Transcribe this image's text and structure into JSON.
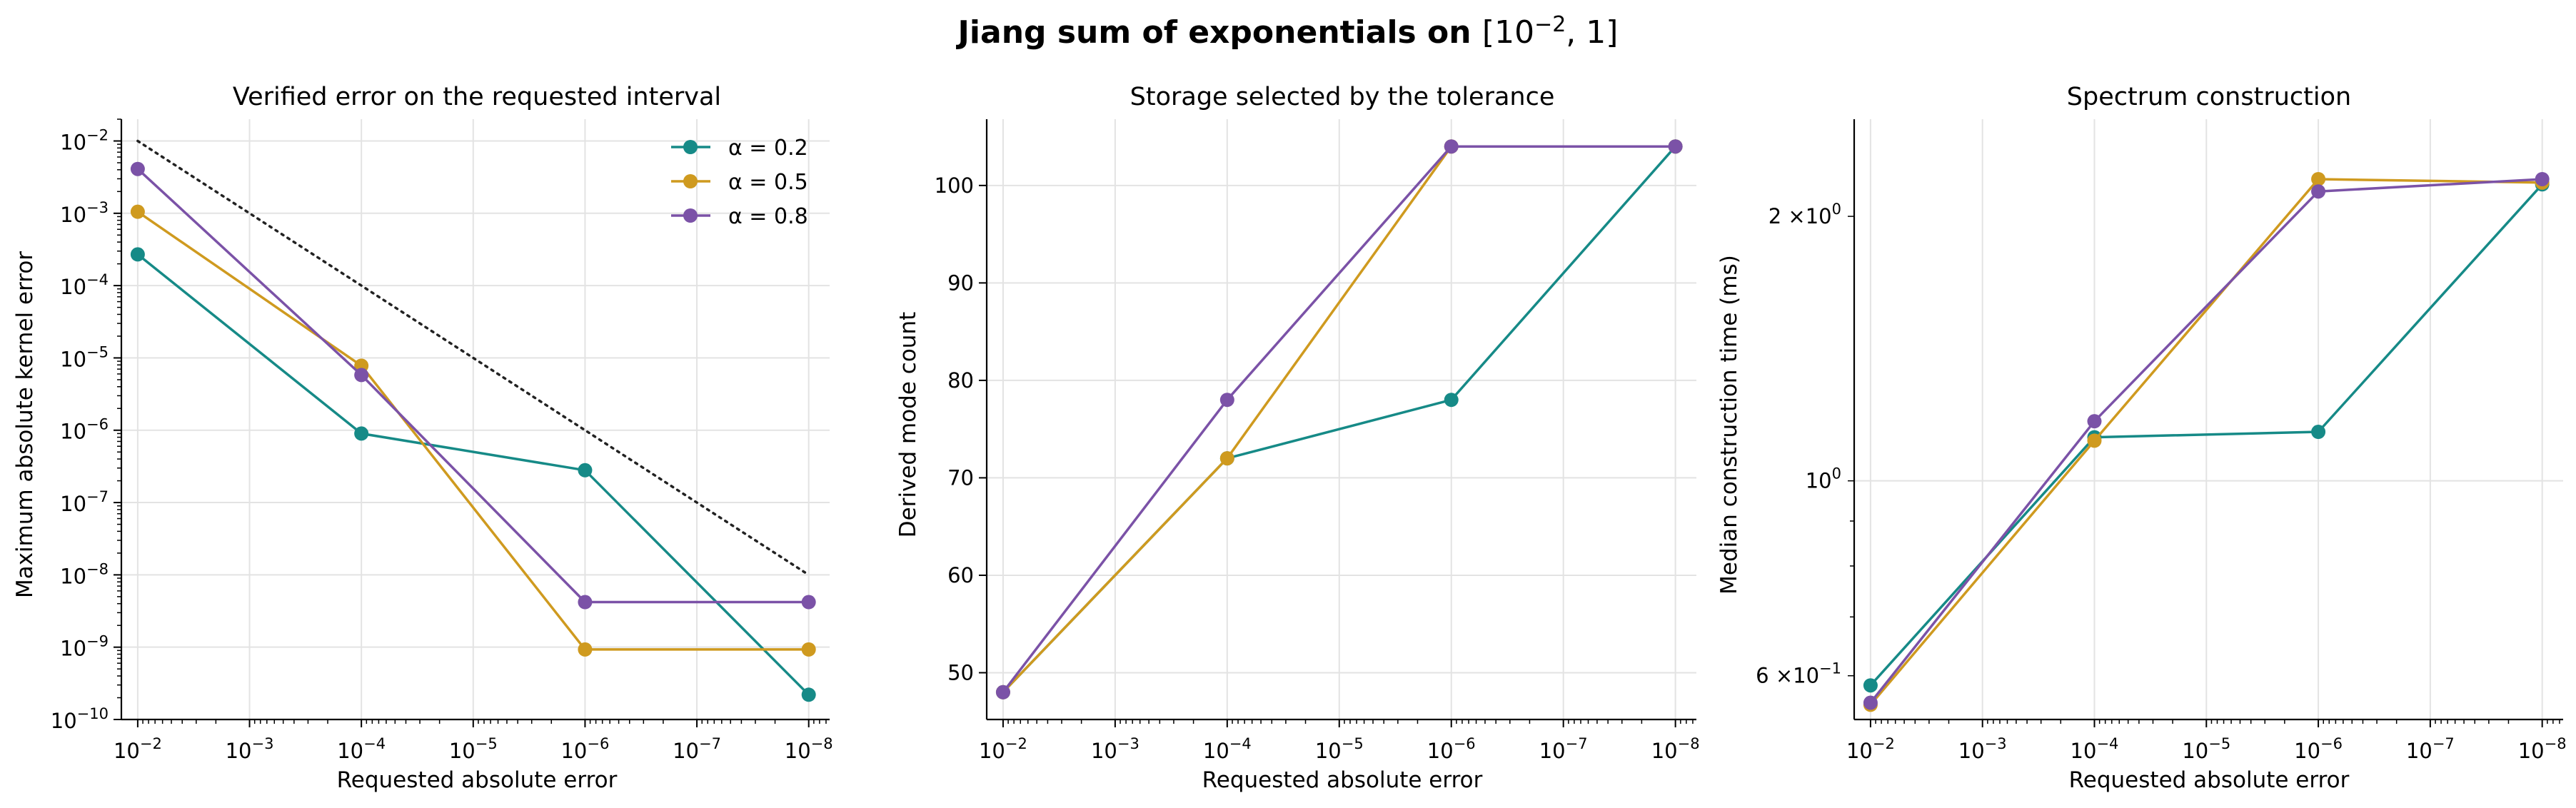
{
  "suptitle": {
    "text": "Jiang sum of exponentials on ",
    "interval": "[10",
    "interval_exp": "−2",
    "interval_end": ", 1]"
  },
  "colors": {
    "alpha_0_2": "#168a87",
    "alpha_0_5": "#cf9a1f",
    "alpha_0_8": "#7b52a7",
    "reference": "#222222",
    "grid": "#e3e3e3"
  },
  "legend": [
    {
      "name": "α = 0.2",
      "color": "#168a87"
    },
    {
      "name": "α = 0.5",
      "color": "#cf9a1f"
    },
    {
      "name": "α = 0.8",
      "color": "#7b52a7"
    }
  ],
  "chart_data": [
    {
      "type": "line",
      "title": "Verified error on the requested interval",
      "xlabel": "Requested absolute error",
      "ylabel": "Maximum absolute kernel error",
      "x": [
        0.01,
        0.0001,
        1e-06,
        1e-08
      ],
      "xscale": "log",
      "xaxis": "inverted",
      "xlim": [
        0.014,
        6.5e-09
      ],
      "yscale": "log",
      "ylim": [
        1e-10,
        0.02
      ],
      "x_ticks": [
        "10^-2",
        "10^-3",
        "10^-4",
        "10^-5",
        "10^-6",
        "10^-7",
        "10^-8"
      ],
      "y_ticks": [
        "10^-2",
        "10^-3",
        "10^-4",
        "10^-5",
        "10^-6",
        "10^-7",
        "10^-8",
        "10^-9",
        "10^-10"
      ],
      "grid": true,
      "legend_position": "top-right",
      "reference_line": {
        "style": "dotted",
        "x": [
          0.01,
          1e-08
        ],
        "y": [
          0.01,
          1e-08
        ]
      },
      "series": [
        {
          "name": "α = 0.2",
          "values": [
            0.00027,
            9e-07,
            2.8e-07,
            2.2e-10
          ]
        },
        {
          "name": "α = 0.5",
          "values": [
            0.00105,
            7.8e-06,
            9.3e-10,
            9.3e-10
          ]
        },
        {
          "name": "α = 0.8",
          "values": [
            0.0041,
            5.8e-06,
            4.2e-09,
            4.2e-09
          ]
        }
      ]
    },
    {
      "type": "line",
      "title": "Storage selected by the tolerance",
      "xlabel": "Requested absolute error",
      "ylabel": "Derived mode count",
      "x": [
        0.01,
        0.0001,
        1e-06,
        1e-08
      ],
      "xscale": "log",
      "xaxis": "inverted",
      "xlim": [
        0.014,
        6.5e-09
      ],
      "yscale": "linear",
      "ylim": [
        45.2,
        106.8
      ],
      "x_ticks": [
        "10^-2",
        "10^-3",
        "10^-4",
        "10^-5",
        "10^-6",
        "10^-7",
        "10^-8"
      ],
      "y_ticks": [
        50,
        60,
        70,
        80,
        90,
        100
      ],
      "grid": true,
      "series": [
        {
          "name": "α = 0.2",
          "values": [
            48,
            72,
            78,
            104
          ]
        },
        {
          "name": "α = 0.5",
          "values": [
            48,
            72,
            104,
            104
          ]
        },
        {
          "name": "α = 0.8",
          "values": [
            48,
            78,
            104,
            104
          ]
        }
      ]
    },
    {
      "type": "line",
      "title": "Spectrum construction",
      "xlabel": "Requested absolute error",
      "ylabel": "Median construction time (ms)",
      "x": [
        0.01,
        0.0001,
        1e-06,
        1e-08
      ],
      "xscale": "log",
      "xaxis": "inverted",
      "xlim": [
        0.014,
        6.5e-09
      ],
      "yscale": "log",
      "ylim": [
        0.535,
        2.58
      ],
      "x_ticks": [
        "10^-2",
        "10^-3",
        "10^-4",
        "10^-5",
        "10^-6",
        "10^-7",
        "10^-8"
      ],
      "y_ticks": [
        "6 × 10^-1",
        "10^0",
        "2 × 10^0"
      ],
      "grid": true,
      "series": [
        {
          "name": "α = 0.2",
          "values": [
            0.585,
            1.121,
            1.137,
            2.175
          ]
        },
        {
          "name": "α = 0.5",
          "values": [
            0.556,
            1.111,
            2.205,
            2.185
          ]
        },
        {
          "name": "α = 0.8",
          "values": [
            0.559,
            1.169,
            2.135,
            2.205
          ]
        }
      ]
    }
  ]
}
